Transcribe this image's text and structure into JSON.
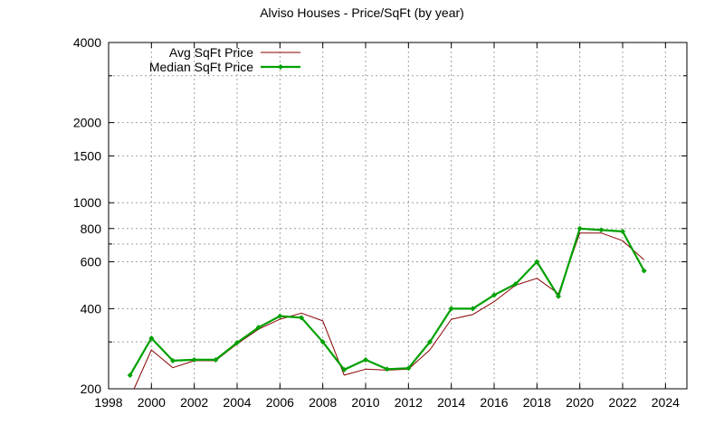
{
  "chart_data": {
    "type": "line",
    "title": "Alviso Houses - Price/SqFt (by year)",
    "xlabel": "",
    "ylabel": "",
    "xlim": [
      1998,
      2025
    ],
    "ylim": [
      200,
      4000
    ],
    "y_scale": "log",
    "x_ticks": [
      1998,
      2000,
      2002,
      2004,
      2006,
      2008,
      2010,
      2012,
      2014,
      2016,
      2018,
      2020,
      2022,
      2024
    ],
    "y_ticks": [
      200,
      400,
      600,
      800,
      1000,
      1500,
      2000,
      4000
    ],
    "y_minor_grid": [
      300,
      700,
      3000
    ],
    "grid": true,
    "legend_position": "top-left",
    "series": [
      {
        "name": "Avg SqFt Price",
        "color": "#8b0000",
        "marker": "none",
        "x": [
          1999,
          2000,
          2001,
          2002,
          2003,
          2004,
          2005,
          2006,
          2007,
          2008,
          2009,
          2010,
          2011,
          2012,
          2013,
          2014,
          2015,
          2016,
          2017,
          2018,
          2019,
          2020,
          2021,
          2022,
          2023
        ],
        "values": [
          185,
          280,
          240,
          255,
          255,
          295,
          335,
          365,
          385,
          360,
          225,
          237,
          235,
          237,
          280,
          365,
          380,
          425,
          490,
          520,
          455,
          770,
          770,
          720,
          610
        ]
      },
      {
        "name": "Median SqFt Price",
        "color": "#00a000",
        "marker": "diamond",
        "x": [
          1999,
          2000,
          2001,
          2002,
          2003,
          2004,
          2005,
          2006,
          2007,
          2008,
          2009,
          2010,
          2011,
          2012,
          2013,
          2014,
          2015,
          2016,
          2017,
          2018,
          2019,
          2020,
          2021,
          2022,
          2023
        ],
        "values": [
          225,
          310,
          255,
          257,
          257,
          298,
          340,
          375,
          370,
          300,
          236,
          257,
          237,
          239,
          300,
          400,
          400,
          450,
          495,
          600,
          445,
          800,
          790,
          780,
          555
        ]
      }
    ]
  }
}
